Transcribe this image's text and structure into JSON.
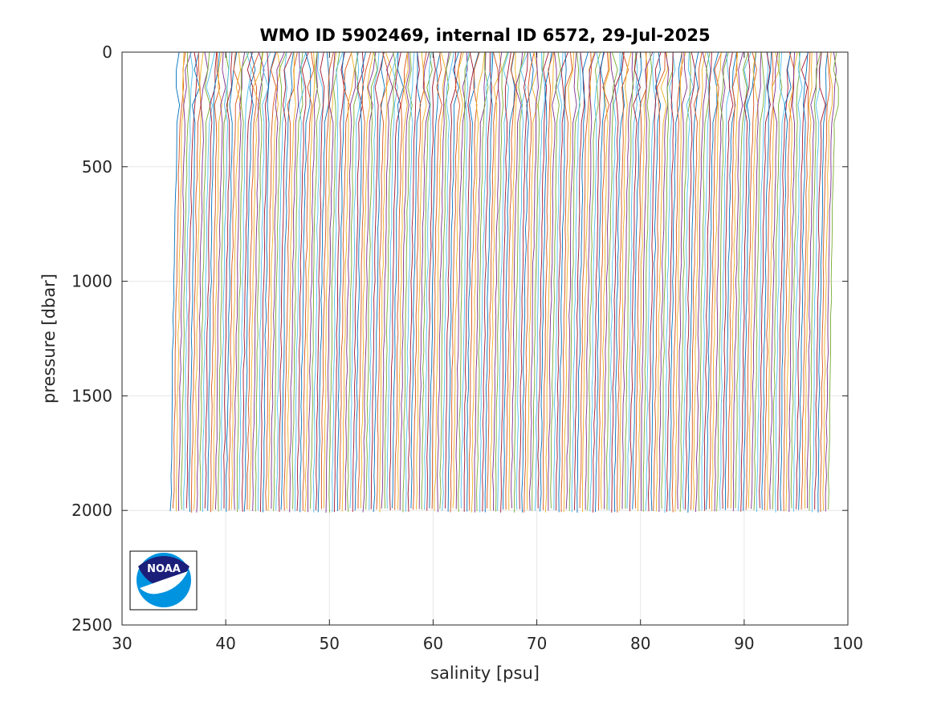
{
  "chart_data": {
    "type": "line",
    "title": "WMO ID 5902469, internal ID 6572, 29-Jul-2025",
    "xlabel": "salinity [psu]",
    "ylabel": "pressure [dbar]",
    "xlim": [
      30,
      100
    ],
    "ylim": [
      0,
      2500
    ],
    "y_reversed": true,
    "grid": true,
    "x_ticks": [
      "30",
      "40",
      "50",
      "60",
      "70",
      "80",
      "90",
      "100"
    ],
    "y_ticks": [
      "0",
      "500",
      "1000",
      "1500",
      "2000",
      "2500"
    ],
    "series_colors": [
      "#0072BD",
      "#D95319",
      "#EDB120",
      "#7E2F8E",
      "#77AC30",
      "#4DBEEE",
      "#A2142F"
    ],
    "profiles": {
      "count": 250,
      "first_surface_salinity": 35.6,
      "last_surface_salinity": 99.0,
      "max_pressure": 2000,
      "offset_between_profiles": 0.26,
      "surface_to_deep_freshening": 0.9
    },
    "logo": {
      "text": "NOAA",
      "name": "noaa-logo"
    }
  }
}
